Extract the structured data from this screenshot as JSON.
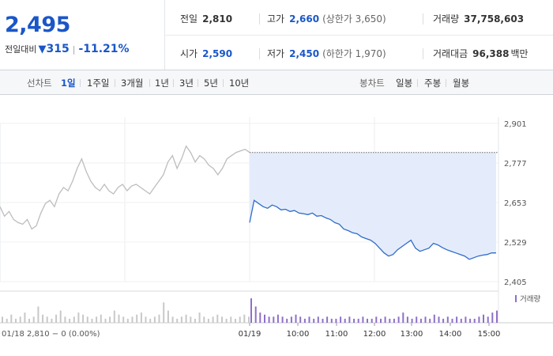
{
  "header": {
    "price": "2,495",
    "change_label": "전일대비",
    "change_icon": "down-triangle",
    "change_amount": "315",
    "change_percent": "-11.21%",
    "prev_close_label": "전일",
    "prev_close": "2,810",
    "high_label": "고가",
    "high": "2,660",
    "upper_limit": "(상한가 3,650)",
    "volume_label": "거래량",
    "volume": "37,758,603",
    "open_label": "시가",
    "open": "2,590",
    "low_label": "저가",
    "low": "2,450",
    "lower_limit": "(하한가 1,970)",
    "value_label": "거래대금",
    "value": "96,388",
    "value_unit": "백만",
    "down_color": "#1a56c8"
  },
  "tabs": {
    "line_chart_label": "선차트",
    "line_items": [
      "1일",
      "1주일",
      "3개월",
      "1년",
      "3년",
      "5년",
      "10년"
    ],
    "active_line_item": "1일",
    "candle_chart_label": "봉차트",
    "candle_items": [
      "일봉",
      "주봉",
      "월봉"
    ]
  },
  "chart_data": {
    "type": "line",
    "y_ticks": [
      "2,901",
      "2,777",
      "2,653",
      "2,529",
      "2,405"
    ],
    "ylim": [
      2405,
      2901
    ],
    "prev_close": 2810,
    "volume_legend": "거래량",
    "prev_day_caption": "01/18  2,810 − 0 (0.00%)",
    "x_ticks": [
      "01/19",
      "10:00",
      "11:00",
      "12:00",
      "13:00",
      "14:00",
      "15:00"
    ],
    "series": [
      {
        "day": "01/18",
        "color": "#bdbdbd",
        "values": [
          2640,
          2610,
          2625,
          2600,
          2590,
          2585,
          2600,
          2570,
          2580,
          2620,
          2650,
          2660,
          2640,
          2680,
          2700,
          2690,
          2720,
          2760,
          2790,
          2750,
          2720,
          2700,
          2690,
          2710,
          2690,
          2680,
          2700,
          2710,
          2690,
          2705,
          2710,
          2700,
          2690,
          2680,
          2700,
          2720,
          2740,
          2780,
          2800,
          2760,
          2790,
          2830,
          2810,
          2780,
          2800,
          2790,
          2770,
          2760,
          2740,
          2760,
          2790,
          2800,
          2810,
          2815,
          2820,
          2810
        ]
      },
      {
        "day": "01/19",
        "color": "#2f6cc7",
        "values": [
          2590,
          2660,
          2650,
          2640,
          2635,
          2645,
          2640,
          2630,
          2632,
          2625,
          2628,
          2620,
          2618,
          2615,
          2620,
          2610,
          2612,
          2605,
          2600,
          2590,
          2585,
          2570,
          2565,
          2558,
          2555,
          2545,
          2540,
          2535,
          2525,
          2510,
          2495,
          2485,
          2490,
          2505,
          2515,
          2525,
          2535,
          2510,
          2500,
          2505,
          2510,
          2525,
          2520,
          2512,
          2505,
          2500,
          2495,
          2490,
          2485,
          2475,
          2480,
          2485,
          2488,
          2490,
          2495,
          2495
        ]
      }
    ],
    "volume": [
      [
        3,
        2,
        4,
        2,
        3,
        5,
        2,
        3,
        8,
        4,
        3,
        2,
        4,
        6,
        3,
        2,
        3,
        5,
        4,
        3,
        2,
        3,
        4,
        2,
        3,
        6,
        4,
        3,
        2,
        3,
        4,
        5,
        3,
        2,
        3,
        4,
        10,
        6,
        3,
        2,
        3,
        4,
        3,
        2,
        5,
        3,
        2,
        3,
        4,
        3,
        2,
        3,
        2,
        3,
        4,
        3
      ],
      [
        12,
        8,
        5,
        4,
        3,
        3,
        4,
        3,
        2,
        3,
        4,
        3,
        2,
        3,
        2,
        3,
        2,
        3,
        2,
        2,
        3,
        2,
        3,
        2,
        2,
        3,
        2,
        2,
        3,
        2,
        3,
        2,
        2,
        3,
        5,
        3,
        2,
        3,
        2,
        3,
        2,
        4,
        3,
        2,
        3,
        2,
        3,
        2,
        3,
        2,
        2,
        3,
        4,
        3,
        5,
        6
      ]
    ]
  }
}
